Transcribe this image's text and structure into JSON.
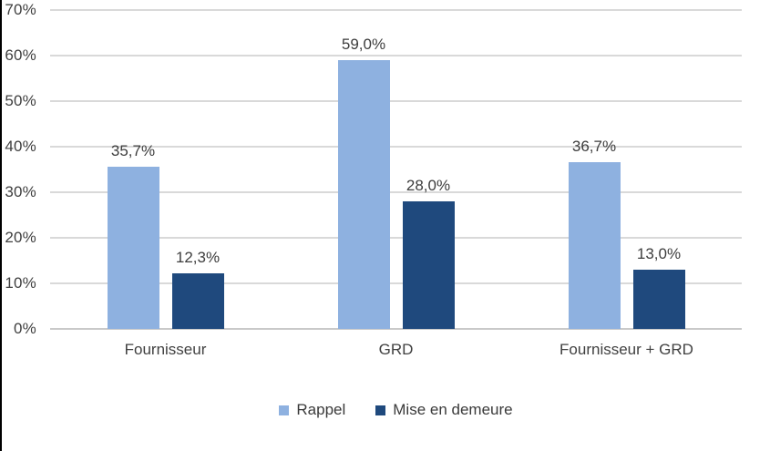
{
  "frame": {
    "background": "#ffffff",
    "left_border_color": "#000000",
    "gridline_color": "#d9d9d9",
    "axis_line_color": "#c9c9c9",
    "text_color": "#404040"
  },
  "chart_data": {
    "type": "bar",
    "title": "",
    "xlabel": "",
    "ylabel": "",
    "categories": [
      "Fournisseur",
      "GRD",
      "Fournisseur + GRD"
    ],
    "series": [
      {
        "name": "Rappel",
        "color": "#8EB1E0",
        "values": [
          35.7,
          59.0,
          36.7
        ],
        "value_labels": [
          "35,7%",
          "59,0%",
          "36,7%"
        ]
      },
      {
        "name": "Mise en demeure",
        "color": "#1F497D",
        "values": [
          12.3,
          28.0,
          13.0
        ],
        "value_labels": [
          "12,3%",
          "28,0%",
          "13,0%"
        ]
      }
    ],
    "y_axis": {
      "min": 0,
      "max": 70,
      "step": 10,
      "tick_labels": [
        "0%",
        "10%",
        "20%",
        "30%",
        "40%",
        "50%",
        "60%",
        "70%"
      ]
    },
    "grid": true,
    "legend_position": "bottom"
  }
}
